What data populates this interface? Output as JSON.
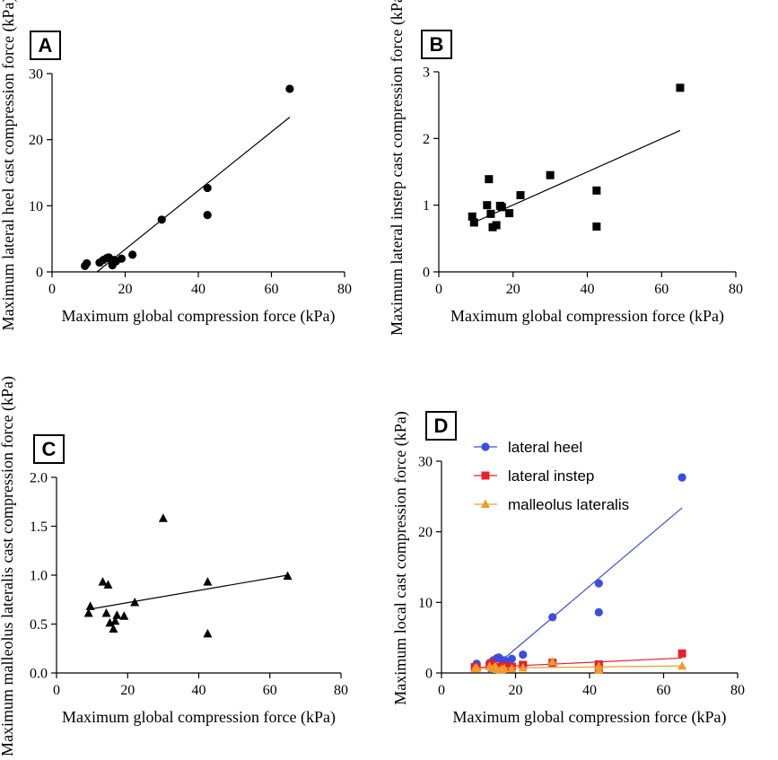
{
  "chart_data": [
    {
      "panel": "A",
      "type": "scatter",
      "xlabel": "Maximum global compression force (kPa)",
      "ylabel": "Maximum lateral heel cast compression force (kPa)",
      "xlim": [
        0,
        80
      ],
      "ylim": [
        0,
        30
      ],
      "xticks": [
        0,
        20,
        40,
        60,
        80
      ],
      "yticks": [
        0,
        10,
        20,
        30
      ],
      "series": [
        {
          "name": "lateral heel",
          "marker": "circle",
          "color": "#000000",
          "x": [
            9,
            9.5,
            13,
            14,
            15,
            15.5,
            16.5,
            16.5,
            17,
            17.5,
            19,
            22,
            30,
            42.5,
            42.5,
            65
          ],
          "y": [
            0.9,
            1.3,
            1.4,
            1.8,
            2.1,
            2.2,
            1.0,
            1.5,
            1.8,
            1.6,
            2.0,
            2.6,
            7.9,
            12.7,
            8.6,
            27.7
          ],
          "fit": {
            "x": [
              12.3,
              65
            ],
            "y": [
              0,
              23.4
            ]
          }
        }
      ]
    },
    {
      "panel": "B",
      "type": "scatter",
      "xlabel": "Maximum global compression force (kPa)",
      "ylabel": "Maximum lateral instep cast compression force (kPa)",
      "xlim": [
        0,
        80
      ],
      "ylim": [
        0,
        3
      ],
      "xticks": [
        0,
        20,
        40,
        60,
        80
      ],
      "yticks": [
        0,
        1,
        2,
        3
      ],
      "series": [
        {
          "name": "lateral instep",
          "marker": "square",
          "color": "#000000",
          "x": [
            9,
            9.5,
            13,
            13.5,
            14,
            14.5,
            15.5,
            16.5,
            17,
            19,
            22,
            30,
            42.5,
            42.5,
            65
          ],
          "y": [
            0.83,
            0.74,
            1.0,
            1.39,
            0.87,
            0.67,
            0.7,
            0.99,
            0.97,
            0.88,
            1.15,
            1.45,
            1.22,
            0.68,
            2.76
          ],
          "fit": {
            "x": [
              9,
              65
            ],
            "y": [
              0.73,
              2.12
            ]
          }
        }
      ]
    },
    {
      "panel": "C",
      "type": "scatter",
      "xlabel": "Maximum global compression force (kPa)",
      "ylabel": "Maximum malleolus lateralis cast compression force (kPa)",
      "xlim": [
        0,
        80
      ],
      "ylim": [
        0,
        2.0
      ],
      "xticks": [
        0,
        20,
        40,
        60,
        80
      ],
      "yticks": [
        "0.0",
        "0.5",
        "1.0",
        "1.5",
        "2.0"
      ],
      "series": [
        {
          "name": "malleolus lateralis",
          "marker": "triangle",
          "color": "#000000",
          "x": [
            9,
            9.5,
            13,
            14,
            14.5,
            15,
            16,
            16.5,
            17,
            19,
            22,
            30,
            42.5,
            42.5,
            65
          ],
          "y": [
            0.61,
            0.68,
            0.93,
            0.61,
            0.9,
            0.51,
            0.45,
            0.53,
            0.59,
            0.58,
            0.72,
            1.58,
            0.93,
            0.4,
            0.99
          ],
          "fit": {
            "x": [
              9,
              65
            ],
            "y": [
              0.65,
              1.0
            ]
          }
        }
      ]
    },
    {
      "panel": "D",
      "type": "scatter",
      "xlabel": "Maximum global compression force (kPa)",
      "ylabel": "Maximum local cast compression force (kPa)",
      "xlim": [
        0,
        80
      ],
      "ylim": [
        0,
        30
      ],
      "xticks": [
        0,
        20,
        40,
        60,
        80
      ],
      "yticks": [
        0,
        10,
        20,
        30
      ],
      "legend": [
        "lateral heel",
        "lateral instep",
        "malleolus lateralis"
      ],
      "series": [
        {
          "name": "lateral heel",
          "marker": "circle",
          "color": "#3b4de0",
          "x": [
            9,
            9.5,
            13,
            14,
            15,
            15.5,
            16.5,
            16.5,
            17,
            17.5,
            19,
            22,
            30,
            42.5,
            42.5,
            65
          ],
          "y": [
            0.9,
            1.3,
            1.4,
            1.8,
            2.1,
            2.2,
            1.0,
            1.5,
            1.8,
            1.6,
            2.0,
            2.6,
            7.9,
            12.7,
            8.6,
            27.7
          ],
          "fit": {
            "x": [
              12.3,
              65
            ],
            "y": [
              0,
              23.4
            ]
          }
        },
        {
          "name": "lateral instep",
          "marker": "square",
          "color": "#e8202a",
          "x": [
            9,
            9.5,
            13,
            13.5,
            14,
            14.5,
            15.5,
            16.5,
            17,
            19,
            22,
            30,
            42.5,
            42.5,
            65
          ],
          "y": [
            0.83,
            0.74,
            1.0,
            1.39,
            0.87,
            0.67,
            0.7,
            0.99,
            0.97,
            0.88,
            1.15,
            1.45,
            1.22,
            0.68,
            2.76
          ],
          "fit": {
            "x": [
              9,
              65
            ],
            "y": [
              0.73,
              2.12
            ]
          }
        },
        {
          "name": "malleolus lateralis",
          "marker": "triangle",
          "color": "#f39a2a",
          "x": [
            9,
            9.5,
            13,
            14,
            14.5,
            15,
            16,
            16.5,
            17,
            19,
            22,
            30,
            42.5,
            42.5,
            65
          ],
          "y": [
            0.61,
            0.68,
            0.93,
            0.61,
            0.9,
            0.51,
            0.45,
            0.53,
            0.59,
            0.58,
            0.72,
            1.58,
            0.93,
            0.4,
            0.99
          ],
          "fit": {
            "x": [
              9,
              65
            ],
            "y": [
              0.65,
              1.0
            ]
          }
        }
      ]
    }
  ]
}
